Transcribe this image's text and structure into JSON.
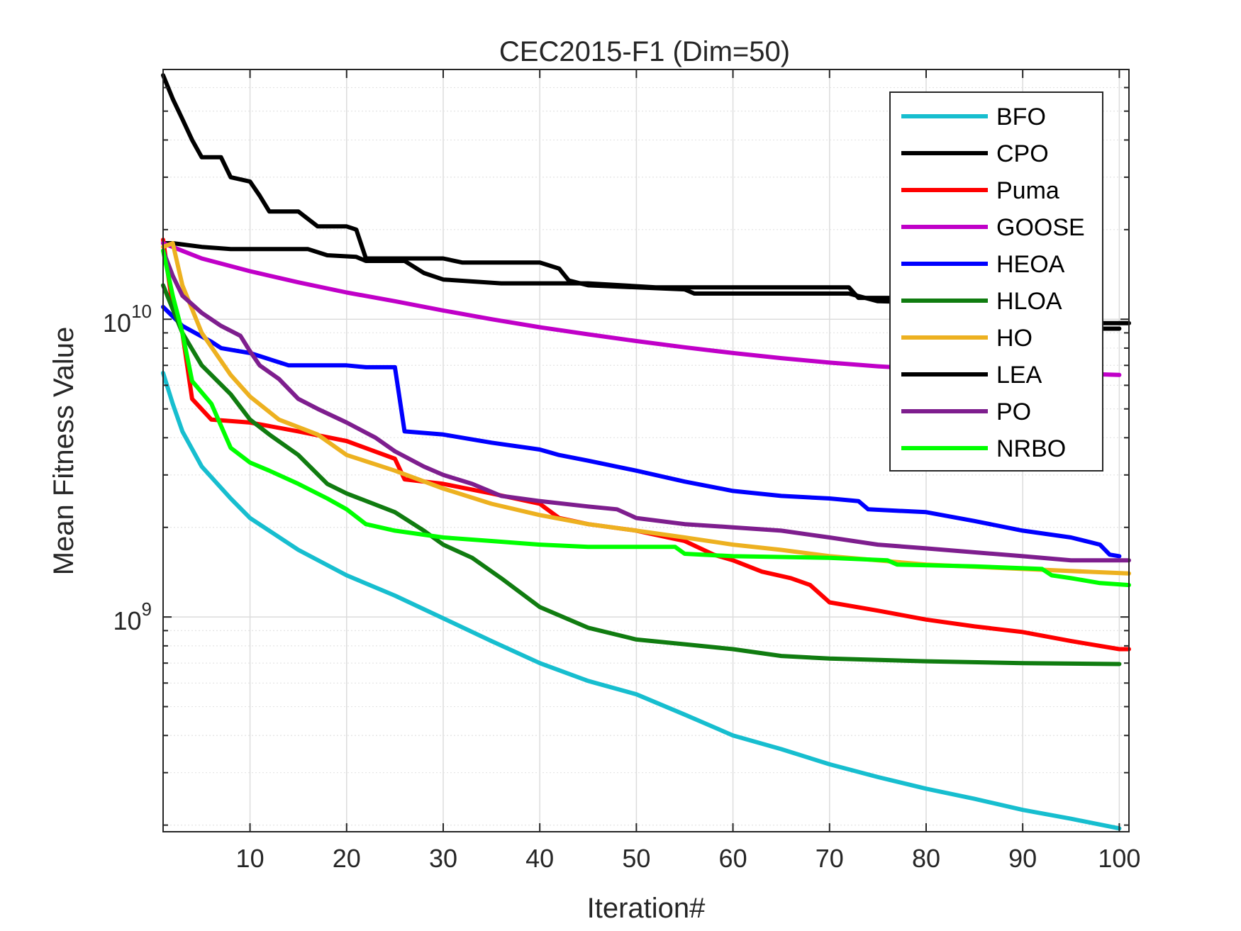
{
  "chart_data": {
    "type": "line",
    "title": "CEC2015-F1 (Dim=50)",
    "xlabel": "Iteration#",
    "ylabel": "Mean Fitness Value",
    "yscale": "log",
    "xlim": [
      1,
      101
    ],
    "ylim": [
      190000000,
      69000000000
    ],
    "x_ticks": [
      10,
      20,
      30,
      40,
      50,
      60,
      70,
      80,
      90,
      100
    ],
    "y_tick_labels": [
      {
        "base": "10",
        "exp": "9",
        "value": 1000000000
      },
      {
        "base": "10",
        "exp": "10",
        "value": 10000000000
      }
    ],
    "grid": true,
    "legend_position": "top-right",
    "series": [
      {
        "name": "BFO",
        "color": "#17BECF",
        "points": [
          [
            1,
            6600000000.0
          ],
          [
            2,
            5200000000.0
          ],
          [
            3,
            4200000000.0
          ],
          [
            5,
            3200000000.0
          ],
          [
            8,
            2500000000.0
          ],
          [
            10,
            2150000000.0
          ],
          [
            15,
            1680000000.0
          ],
          [
            20,
            1380000000.0
          ],
          [
            25,
            1180000000.0
          ],
          [
            30,
            990000000.0
          ],
          [
            35,
            830000000.0
          ],
          [
            40,
            700000000.0
          ],
          [
            45,
            610000000.0
          ],
          [
            50,
            550000000.0
          ],
          [
            55,
            470000000.0
          ],
          [
            60,
            400000000.0
          ],
          [
            65,
            360000000.0
          ],
          [
            70,
            320000000.0
          ],
          [
            75,
            290000000.0
          ],
          [
            80,
            265000000.0
          ],
          [
            85,
            245000000.0
          ],
          [
            90,
            225000000.0
          ],
          [
            95,
            210000000.0
          ],
          [
            100,
            195000000.0
          ]
        ]
      },
      {
        "name": "CPO",
        "color": "#000000",
        "points": [
          [
            1,
            18000000000.0
          ],
          [
            2,
            18000000000.0
          ],
          [
            5,
            17500000000.0
          ],
          [
            8,
            17200000000.0
          ],
          [
            12,
            17200000000.0
          ],
          [
            16,
            17200000000.0
          ],
          [
            18,
            16400000000.0
          ],
          [
            21,
            16200000000.0
          ],
          [
            22,
            15700000000.0
          ],
          [
            26,
            15700000000.0
          ],
          [
            28,
            14300000000.0
          ],
          [
            30,
            13600000000.0
          ],
          [
            36,
            13200000000.0
          ],
          [
            45,
            13200000000.0
          ],
          [
            52,
            12800000000.0
          ],
          [
            60,
            12800000000.0
          ],
          [
            72,
            12800000000.0
          ],
          [
            73,
            11800000000.0
          ],
          [
            80,
            11800000000.0
          ],
          [
            88,
            11200000000.0
          ],
          [
            92,
            11200000000.0
          ],
          [
            96,
            10500000000.0
          ],
          [
            98,
            9700000000.0
          ],
          [
            101,
            9700000000.0
          ]
        ]
      },
      {
        "name": "Puma",
        "color": "#FF0000",
        "points": [
          [
            1,
            18500000000.0
          ],
          [
            2,
            11000000000.0
          ],
          [
            3,
            9000000000.0
          ],
          [
            4,
            5400000000.0
          ],
          [
            6,
            4600000000.0
          ],
          [
            10,
            4500000000.0
          ],
          [
            15,
            4200000000.0
          ],
          [
            20,
            3900000000.0
          ],
          [
            25,
            3400000000.0
          ],
          [
            26,
            2900000000.0
          ],
          [
            30,
            2800000000.0
          ],
          [
            35,
            2600000000.0
          ],
          [
            40,
            2400000000.0
          ],
          [
            42,
            2150000000.0
          ],
          [
            45,
            2050000000.0
          ],
          [
            50,
            1950000000.0
          ],
          [
            55,
            1800000000.0
          ],
          [
            58,
            1620000000.0
          ],
          [
            60,
            1550000000.0
          ],
          [
            63,
            1420000000.0
          ],
          [
            66,
            1350000000.0
          ],
          [
            68,
            1280000000.0
          ],
          [
            70,
            1120000000.0
          ],
          [
            75,
            1050000000.0
          ],
          [
            80,
            980000000.0
          ],
          [
            85,
            930000000.0
          ],
          [
            90,
            890000000.0
          ],
          [
            95,
            830000000.0
          ],
          [
            100,
            780000000.0
          ],
          [
            101,
            780000000.0
          ]
        ]
      },
      {
        "name": "GOOSE",
        "color": "#C000C8",
        "points": [
          [
            1,
            18000000000.0
          ],
          [
            5,
            16000000000.0
          ],
          [
            10,
            14500000000.0
          ],
          [
            15,
            13300000000.0
          ],
          [
            20,
            12300000000.0
          ],
          [
            25,
            11500000000.0
          ],
          [
            30,
            10700000000.0
          ],
          [
            35,
            10000000000.0
          ],
          [
            40,
            9400000000.0
          ],
          [
            45,
            8900000000.0
          ],
          [
            50,
            8450000000.0
          ],
          [
            55,
            8050000000.0
          ],
          [
            60,
            7700000000.0
          ],
          [
            65,
            7400000000.0
          ],
          [
            70,
            7150000000.0
          ],
          [
            75,
            6950000000.0
          ],
          [
            80,
            6800000000.0
          ],
          [
            90,
            6650000000.0
          ],
          [
            100,
            6500000000.0
          ]
        ]
      },
      {
        "name": "HEOA",
        "color": "#0000FF",
        "points": [
          [
            1,
            11000000000.0
          ],
          [
            3,
            9500000000.0
          ],
          [
            6,
            8400000000.0
          ],
          [
            7,
            8000000000.0
          ],
          [
            10,
            7700000000.0
          ],
          [
            14,
            7000000000.0
          ],
          [
            20,
            7000000000.0
          ],
          [
            22,
            6900000000.0
          ],
          [
            25,
            6900000000.0
          ],
          [
            26,
            4200000000.0
          ],
          [
            30,
            4100000000.0
          ],
          [
            35,
            3850000000.0
          ],
          [
            40,
            3650000000.0
          ],
          [
            42,
            3500000000.0
          ],
          [
            45,
            3350000000.0
          ],
          [
            50,
            3100000000.0
          ],
          [
            55,
            2850000000.0
          ],
          [
            60,
            2650000000.0
          ],
          [
            65,
            2550000000.0
          ],
          [
            70,
            2500000000.0
          ],
          [
            73,
            2450000000.0
          ],
          [
            74,
            2300000000.0
          ],
          [
            80,
            2250000000.0
          ],
          [
            85,
            2100000000.0
          ],
          [
            90,
            1950000000.0
          ],
          [
            95,
            1850000000.0
          ],
          [
            98,
            1750000000.0
          ],
          [
            99,
            1620000000.0
          ],
          [
            100,
            1600000000.0
          ]
        ]
      },
      {
        "name": "HLOA",
        "color": "#107C10",
        "points": [
          [
            1,
            13000000000.0
          ],
          [
            3,
            9000000000.0
          ],
          [
            5,
            7000000000.0
          ],
          [
            8,
            5600000000.0
          ],
          [
            10,
            4600000000.0
          ],
          [
            12,
            4100000000.0
          ],
          [
            15,
            3500000000.0
          ],
          [
            18,
            2800000000.0
          ],
          [
            20,
            2600000000.0
          ],
          [
            25,
            2250000000.0
          ],
          [
            28,
            1950000000.0
          ],
          [
            30,
            1750000000.0
          ],
          [
            33,
            1580000000.0
          ],
          [
            36,
            1350000000.0
          ],
          [
            40,
            1080000000.0
          ],
          [
            45,
            920000000.0
          ],
          [
            50,
            840000000.0
          ],
          [
            55,
            810000000.0
          ],
          [
            60,
            780000000.0
          ],
          [
            65,
            740000000.0
          ],
          [
            70,
            725000000.0
          ],
          [
            80,
            710000000.0
          ],
          [
            90,
            700000000.0
          ],
          [
            100,
            695000000.0
          ]
        ]
      },
      {
        "name": "HO",
        "color": "#EDB120",
        "points": [
          [
            1,
            17500000000.0
          ],
          [
            2,
            18000000000.0
          ],
          [
            3,
            13000000000.0
          ],
          [
            5,
            9000000000.0
          ],
          [
            8,
            6500000000.0
          ],
          [
            10,
            5500000000.0
          ],
          [
            13,
            4600000000.0
          ],
          [
            17,
            4100000000.0
          ],
          [
            20,
            3500000000.0
          ],
          [
            25,
            3100000000.0
          ],
          [
            30,
            2700000000.0
          ],
          [
            35,
            2400000000.0
          ],
          [
            40,
            2200000000.0
          ],
          [
            45,
            2050000000.0
          ],
          [
            50,
            1950000000.0
          ],
          [
            55,
            1850000000.0
          ],
          [
            60,
            1750000000.0
          ],
          [
            65,
            1680000000.0
          ],
          [
            70,
            1600000000.0
          ],
          [
            80,
            1500000000.0
          ],
          [
            90,
            1450000000.0
          ],
          [
            101,
            1400000000.0
          ]
        ]
      },
      {
        "name": "LEA",
        "color": "#000000",
        "points": [
          [
            1,
            66000000000.0
          ],
          [
            2,
            55000000000.0
          ],
          [
            3,
            47000000000.0
          ],
          [
            4,
            40000000000.0
          ],
          [
            5,
            35000000000.0
          ],
          [
            7,
            35000000000.0
          ],
          [
            8,
            30000000000.0
          ],
          [
            10,
            29000000000.0
          ],
          [
            11,
            26000000000.0
          ],
          [
            12,
            23000000000.0
          ],
          [
            15,
            23000000000.0
          ],
          [
            17,
            20500000000.0
          ],
          [
            20,
            20500000000.0
          ],
          [
            21,
            20000000000.0
          ],
          [
            22,
            16000000000.0
          ],
          [
            30,
            16000000000.0
          ],
          [
            32,
            15500000000.0
          ],
          [
            40,
            15500000000.0
          ],
          [
            42,
            14800000000.0
          ],
          [
            43,
            13500000000.0
          ],
          [
            45,
            13000000000.0
          ],
          [
            55,
            12600000000.0
          ],
          [
            56,
            12200000000.0
          ],
          [
            72,
            12200000000.0
          ],
          [
            75,
            11500000000.0
          ],
          [
            90,
            11200000000.0
          ],
          [
            97,
            10500000000.0
          ],
          [
            98,
            9300000000.0
          ],
          [
            100,
            9300000000.0
          ]
        ]
      },
      {
        "name": "PO",
        "color": "#7E1E8E",
        "points": [
          [
            1,
            17000000000.0
          ],
          [
            2,
            14000000000.0
          ],
          [
            3,
            12000000000.0
          ],
          [
            5,
            10500000000.0
          ],
          [
            7,
            9500000000.0
          ],
          [
            9,
            8800000000.0
          ],
          [
            10,
            7800000000.0
          ],
          [
            11,
            7000000000.0
          ],
          [
            13,
            6300000000.0
          ],
          [
            15,
            5400000000.0
          ],
          [
            17,
            5000000000.0
          ],
          [
            20,
            4500000000.0
          ],
          [
            23,
            4000000000.0
          ],
          [
            25,
            3600000000.0
          ],
          [
            28,
            3200000000.0
          ],
          [
            30,
            3000000000.0
          ],
          [
            33,
            2800000000.0
          ],
          [
            36,
            2550000000.0
          ],
          [
            40,
            2450000000.0
          ],
          [
            45,
            2350000000.0
          ],
          [
            48,
            2300000000.0
          ],
          [
            50,
            2150000000.0
          ],
          [
            55,
            2050000000.0
          ],
          [
            60,
            2000000000.0
          ],
          [
            65,
            1950000000.0
          ],
          [
            70,
            1850000000.0
          ],
          [
            75,
            1750000000.0
          ],
          [
            80,
            1700000000.0
          ],
          [
            90,
            1600000000.0
          ],
          [
            95,
            1550000000.0
          ],
          [
            101,
            1550000000.0
          ]
        ]
      },
      {
        "name": "NRBO",
        "color": "#00FF00",
        "points": [
          [
            1,
            17000000000.0
          ],
          [
            2,
            12000000000.0
          ],
          [
            3,
            9000000000.0
          ],
          [
            4,
            6200000000.0
          ],
          [
            6,
            5200000000.0
          ],
          [
            8,
            3700000000.0
          ],
          [
            10,
            3300000000.0
          ],
          [
            12,
            3100000000.0
          ],
          [
            15,
            2800000000.0
          ],
          [
            18,
            2500000000.0
          ],
          [
            20,
            2300000000.0
          ],
          [
            22,
            2050000000.0
          ],
          [
            25,
            1950000000.0
          ],
          [
            30,
            1850000000.0
          ],
          [
            35,
            1800000000.0
          ],
          [
            40,
            1750000000.0
          ],
          [
            45,
            1720000000.0
          ],
          [
            54,
            1720000000.0
          ],
          [
            55,
            1630000000.0
          ],
          [
            60,
            1600000000.0
          ],
          [
            70,
            1580000000.0
          ],
          [
            76,
            1550000000.0
          ],
          [
            77,
            1500000000.0
          ],
          [
            85,
            1480000000.0
          ],
          [
            92,
            1450000000.0
          ],
          [
            93,
            1380000000.0
          ],
          [
            95,
            1350000000.0
          ],
          [
            98,
            1300000000.0
          ],
          [
            101,
            1280000000.0
          ]
        ]
      }
    ]
  }
}
